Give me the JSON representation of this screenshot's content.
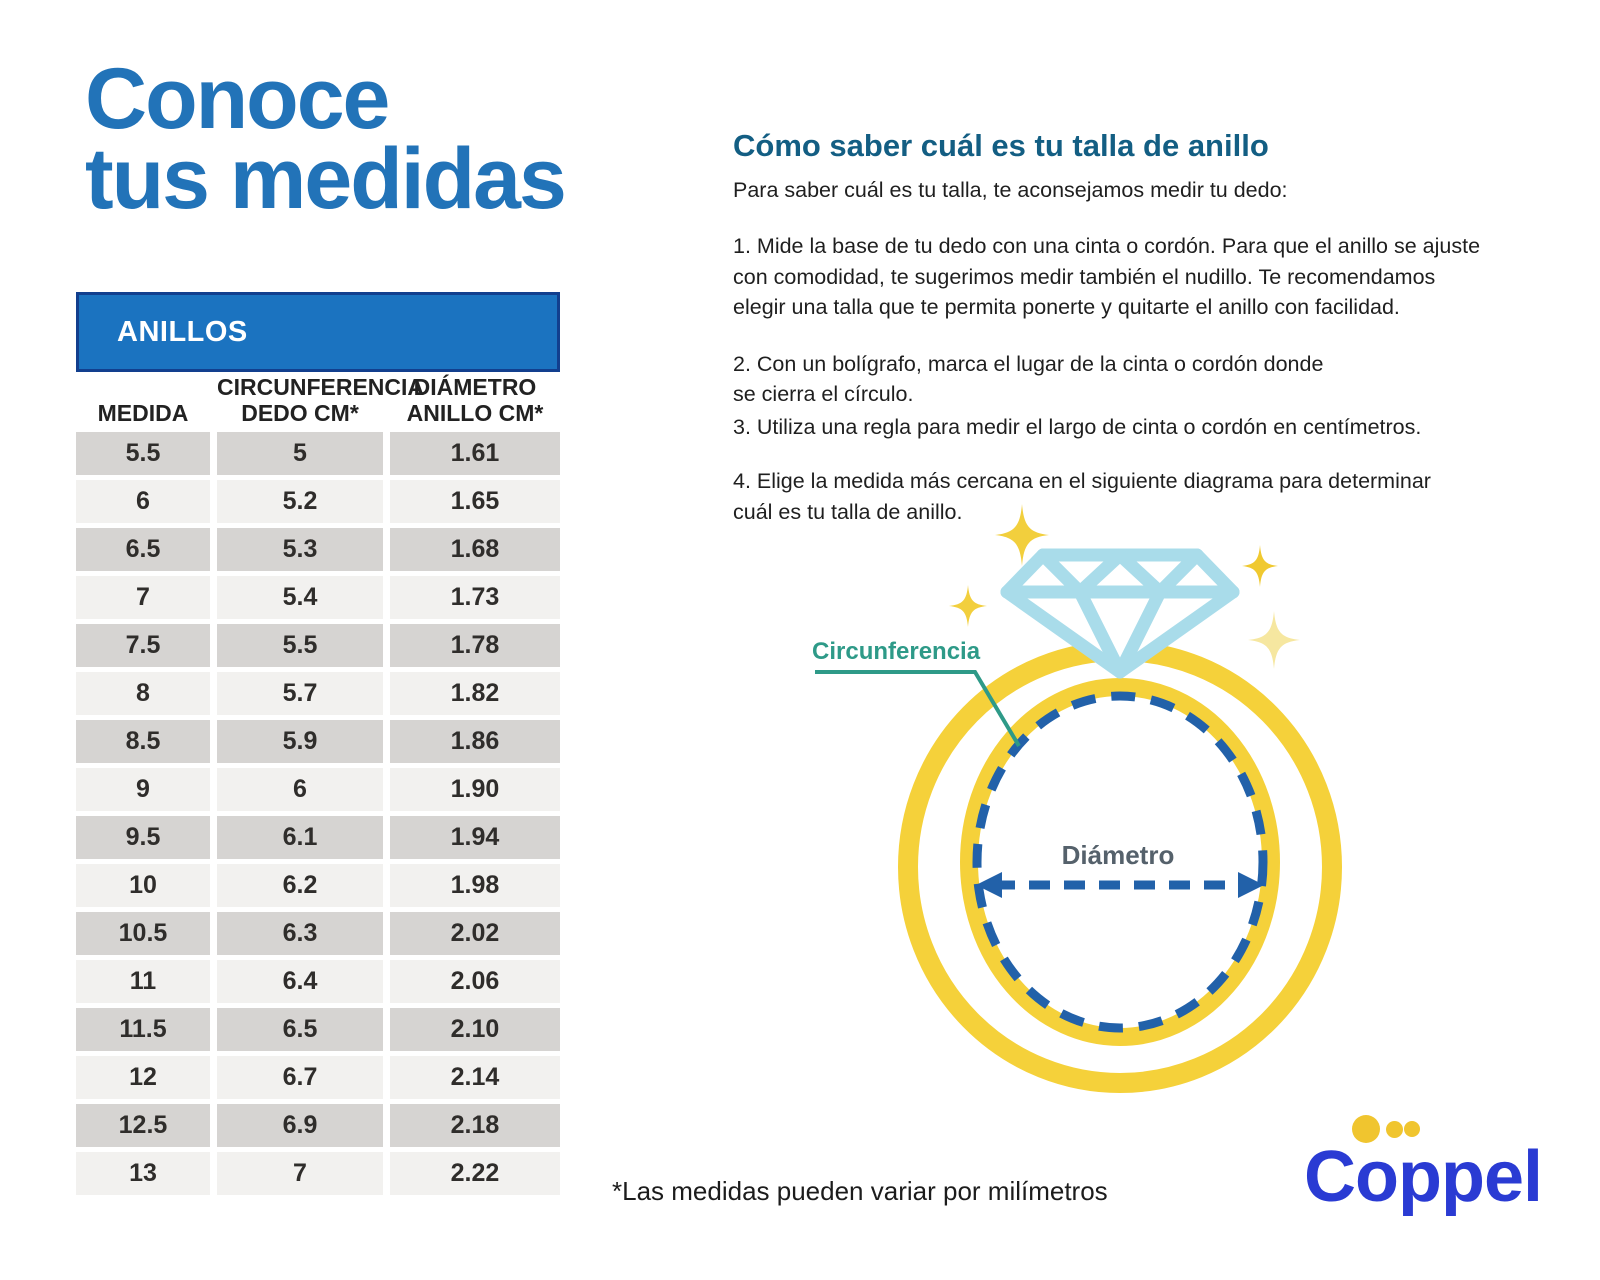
{
  "page": {
    "background": "#ffffff"
  },
  "left": {
    "title": "Conoce\ntus medidas",
    "title_color": "#2273b8"
  },
  "table": {
    "header": "ANILLOS",
    "header_bg": "#1b73c0",
    "header_border": "#123f8e",
    "row_dark": "#d6d4d2",
    "row_light": "#f2f1ef",
    "columns": [
      "MEDIDA",
      "CIRCUNFERENCIA\nDEDO CM*",
      "DIÁMETRO\nANILLO CM*"
    ],
    "rows": [
      [
        "5.5",
        "5",
        "1.61"
      ],
      [
        "6",
        "5.2",
        "1.65"
      ],
      [
        "6.5",
        "5.3",
        "1.68"
      ],
      [
        "7",
        "5.4",
        "1.73"
      ],
      [
        "7.5",
        "5.5",
        "1.78"
      ],
      [
        "8",
        "5.7",
        "1.82"
      ],
      [
        "8.5",
        "5.9",
        "1.86"
      ],
      [
        "9",
        "6",
        "1.90"
      ],
      [
        "9.5",
        "6.1",
        "1.94"
      ],
      [
        "10",
        "6.2",
        "1.98"
      ],
      [
        "10.5",
        "6.3",
        "2.02"
      ],
      [
        "11",
        "6.4",
        "2.06"
      ],
      [
        "11.5",
        "6.5",
        "2.10"
      ],
      [
        "12",
        "6.7",
        "2.14"
      ],
      [
        "12.5",
        "6.9",
        "2.18"
      ],
      [
        "13",
        "7",
        "2.22"
      ]
    ]
  },
  "how_to": {
    "heading": "Cómo saber cuál es tu talla de anillo",
    "heading_color": "#135e83",
    "intro": "Para saber cuál es tu talla, te aconsejamos medir tu dedo:",
    "steps": [
      "1. Mide la base de tu dedo con una cinta o cordón. Para que el anillo se ajuste\ncon comodidad, te sugerimos medir también el nudillo. Te recomendamos\nelegir una talla que te permita ponerte y quitarte el anillo con facilidad.",
      "2. Con un bolígrafo, marca el lugar de la cinta o cordón donde\nse cierra el círculo.",
      "3. Utiliza una regla para medir el largo de cinta o cordón en centímetros.",
      "4. Elige la medida más cercana en el siguiente diagrama para determinar\ncuál es tu talla de anillo."
    ]
  },
  "diagram": {
    "circumference_label": "Circunferencia",
    "diameter_label": "Diámetro",
    "ring_color": "#f5d13a",
    "diamond_color": "#a9dcea",
    "dash_color": "#2261a9",
    "circumference_label_color": "#2e9a88",
    "diameter_label_color": "#55616b",
    "sparkle_color": "#f2cf3d",
    "sparkle_pale_color": "#f6e7a0"
  },
  "footnote": "*Las medidas pueden variar por milímetros",
  "brand": {
    "logo_text": "Coppel",
    "logo_color": "#2a3bd3",
    "dot_color": "#f0c52f"
  }
}
